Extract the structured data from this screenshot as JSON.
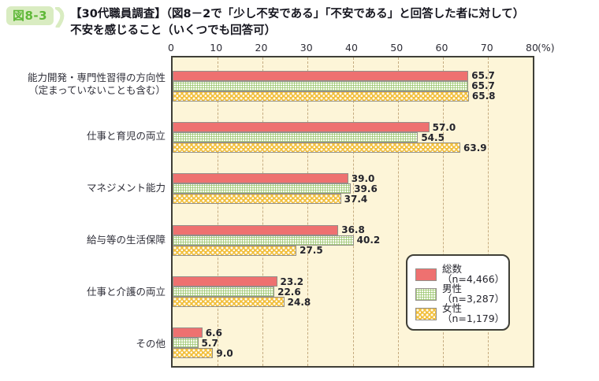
{
  "figure": {
    "badge": "図8-3",
    "title_line1": "【30代職員調査】（図8－2で「少し不安である」「不安である」と回答した者に対して）",
    "title_line2": "不安を感じること（いくつでも回答可）"
  },
  "chart_data": {
    "type": "bar",
    "orientation": "horizontal",
    "title": "図8-3 【30代職員調査】（図8－2で「少し不安である」「不安である」と回答した者に対して）不安を感じること（いくつでも回答可）",
    "xlabel_unit": "(%)",
    "xlim": [
      0,
      80
    ],
    "ticks": [
      "0",
      "10",
      "20",
      "30",
      "40",
      "50",
      "60",
      "70",
      "80"
    ],
    "grid": "dashed vertical gridlines every 10%",
    "legend_position": "inside bottom-right",
    "plot_background": "#fdf5d8",
    "categories": [
      "能力開発・専門性習得の方向性（定まっていないことも含む）",
      "仕事と育児の両立",
      "マネジメント能力",
      "給与等の生活保障",
      "仕事と介護の両立",
      "その他"
    ],
    "category_lines": [
      {
        "line1": "能力開発・専門性習得の方向性",
        "line2": "（定まっていないことも含む）"
      },
      {
        "line1": "仕事と育児の両立",
        "line2": ""
      },
      {
        "line1": "マネジメント能力",
        "line2": ""
      },
      {
        "line1": "給与等の生活保障",
        "line2": ""
      },
      {
        "line1": "仕事と介護の両立",
        "line2": ""
      },
      {
        "line1": "その他",
        "line2": ""
      }
    ],
    "series": [
      {
        "name": "総数（n=4,466）",
        "style": "solid red",
        "color": "#ee7170",
        "values": [
          65.7,
          57.0,
          39.0,
          36.8,
          23.2,
          6.6
        ],
        "value_labels": [
          "65.7",
          "57.0",
          "39.0",
          "36.8",
          "23.2",
          "6.6"
        ]
      },
      {
        "name": "男性（n=3,287）",
        "style": "white with green dot grid",
        "color": "#96c46a",
        "values": [
          65.7,
          54.5,
          39.6,
          40.2,
          22.6,
          5.7
        ],
        "value_labels": [
          "65.7",
          "54.5",
          "39.6",
          "40.2",
          "22.6",
          "5.7"
        ]
      },
      {
        "name": "女性（n=1,179）",
        "style": "yellow with white dot lattice",
        "color": "#f2bf3c",
        "values": [
          65.8,
          63.9,
          37.4,
          27.5,
          24.8,
          9.0
        ],
        "value_labels": [
          "65.8",
          "63.9",
          "37.4",
          "27.5",
          "24.8",
          "9.0"
        ]
      }
    ]
  }
}
